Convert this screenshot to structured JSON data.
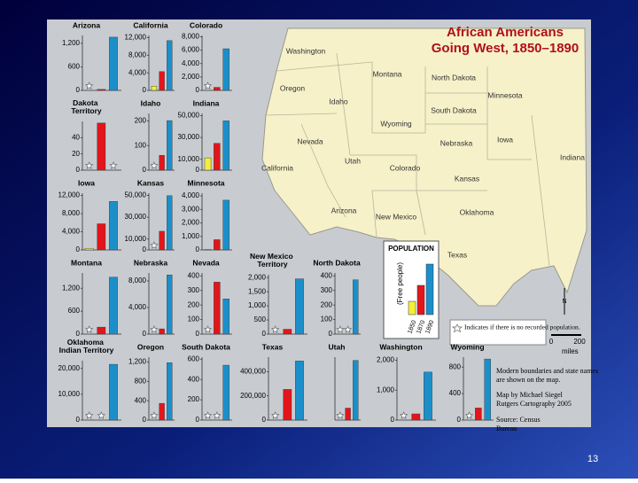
{
  "title": [
    "African Americans",
    "Going West, 1850–1890"
  ],
  "series_colors": [
    "#f4ee3a",
    "#e3151b",
    "#1b8fca"
  ],
  "legend": {
    "title": "POPULATION",
    "subtitle": "(Free people)",
    "years": [
      "1850",
      "1870",
      "1890"
    ]
  },
  "star_note": "Indicates if there is no recorded population.",
  "scale": {
    "start": "0",
    "end": "200",
    "unit": "miles"
  },
  "compass": "N",
  "notes": [
    "Modern boundaries and state names are shown on the map.",
    "Map by Michael Siegel Rutgers Cartography 2005",
    "Source: Census Bureau"
  ],
  "states": [
    "Washington",
    "Montana",
    "North Dakota",
    "Minnesota",
    "Oregon",
    "Idaho",
    "South Dakota",
    "Wyoming",
    "Iowa",
    "Nevada",
    "Nebraska",
    "Indiana",
    "Utah",
    "Colorado",
    "California",
    "Kansas",
    "Arizona",
    "New Mexico",
    "Oklahoma",
    "Texas"
  ],
  "charts": [
    {
      "type": "bar",
      "name": "Arizona",
      "ylim": [
        0,
        1400
      ],
      "yticks": [
        0,
        600,
        {
          "value": 1200,
          "label": "1,200"
        }
      ],
      "values": [
        null,
        26,
        1357
      ]
    },
    {
      "type": "bar",
      "name": "California",
      "ylim": [
        0,
        12500
      ],
      "yticks": [
        0,
        {
          "value": 4000,
          "label": "4,000"
        },
        {
          "value": 8000,
          "label": "8,000"
        },
        {
          "value": 12000,
          "label": "12,000"
        }
      ],
      "values": [
        962,
        4272,
        11322
      ]
    },
    {
      "type": "bar",
      "name": "Colorado",
      "ylim": [
        0,
        8200
      ],
      "yticks": [
        0,
        {
          "value": 2000,
          "label": "2,000"
        },
        {
          "value": 4000,
          "label": "4,000"
        },
        {
          "value": 6000,
          "label": "6,000"
        },
        {
          "value": 8000,
          "label": "8,000"
        }
      ],
      "values": [
        null,
        456,
        6215
      ]
    },
    {
      "type": "bar",
      "name": "Dakota Territory",
      "ylim": [
        0,
        60
      ],
      "yticks": [
        0,
        20,
        40
      ],
      "values": [
        null,
        58,
        null
      ]
    },
    {
      "type": "bar",
      "name": "Idaho",
      "ylim": [
        0,
        230
      ],
      "yticks": [
        0,
        100,
        200
      ],
      "values": [
        null,
        60,
        201
      ]
    },
    {
      "type": "bar",
      "name": "Indiana",
      "ylim": [
        0,
        52000
      ],
      "yticks": [
        0,
        {
          "value": 10000,
          "label": "10,000"
        },
        {
          "value": 30000,
          "label": "30,000"
        },
        {
          "value": 50000,
          "label": "50,000"
        }
      ],
      "values": [
        11262,
        24560,
        45215
      ]
    },
    {
      "type": "bar",
      "name": "Iowa",
      "ylim": [
        0,
        12500
      ],
      "yticks": [
        0,
        {
          "value": 4000,
          "label": "4,000"
        },
        {
          "value": 8000,
          "label": "8,000"
        },
        {
          "value": 12000,
          "label": "12,000"
        }
      ],
      "values": [
        333,
        5762,
        10685
      ]
    },
    {
      "type": "bar",
      "name": "Kansas",
      "ylim": [
        0,
        52000
      ],
      "yticks": [
        0,
        {
          "value": 10000,
          "label": "10,000"
        },
        {
          "value": 30000,
          "label": "30,000"
        },
        {
          "value": 50000,
          "label": "50,000"
        }
      ],
      "values": [
        null,
        17108,
        49710
      ]
    },
    {
      "type": "bar",
      "name": "Minnesota",
      "ylim": [
        0,
        4200
      ],
      "yticks": [
        0,
        {
          "value": 1000,
          "label": "1,000"
        },
        {
          "value": 2000,
          "label": "2,000"
        },
        {
          "value": 3000,
          "label": "3,000"
        },
        {
          "value": 4000,
          "label": "4,000"
        }
      ],
      "values": [
        39,
        759,
        3683
      ]
    },
    {
      "type": "bar",
      "name": "Montana",
      "ylim": [
        0,
        1600
      ],
      "yticks": [
        0,
        600,
        {
          "value": 1200,
          "label": "1,200"
        }
      ],
      "values": [
        null,
        183,
        1490
      ]
    },
    {
      "type": "bar",
      "name": "Nebraska",
      "ylim": [
        0,
        9200
      ],
      "yticks": [
        0,
        {
          "value": 4000,
          "label": "4,000"
        },
        {
          "value": 8000,
          "label": "8,000"
        }
      ],
      "values": [
        null,
        789,
        8913
      ]
    },
    {
      "type": "bar",
      "name": "Nevada",
      "ylim": [
        0,
        420
      ],
      "yticks": [
        0,
        100,
        200,
        300,
        400
      ],
      "values": [
        null,
        357,
        242
      ]
    },
    {
      "type": "bar",
      "name": "New Mexico Territory",
      "ylim": [
        0,
        2100
      ],
      "yticks": [
        0,
        500,
        {
          "value": 1000,
          "label": "1,000"
        },
        {
          "value": 1500,
          "label": "1,500"
        },
        {
          "value": 2000,
          "label": "2,000"
        }
      ],
      "values": [
        null,
        172,
        1956
      ]
    },
    {
      "type": "bar",
      "name": "North Dakota",
      "ylim": [
        0,
        420
      ],
      "yticks": [
        0,
        100,
        200,
        300,
        400
      ],
      "values": [
        null,
        null,
        373
      ]
    },
    {
      "type": "bar",
      "name": "Oklahoma Indian Territory",
      "ylim": [
        0,
        23000
      ],
      "yticks": [
        0,
        {
          "value": 10000,
          "label": "10,000"
        },
        {
          "value": 20000,
          "label": "20,000"
        }
      ],
      "values": [
        null,
        null,
        21609
      ]
    },
    {
      "type": "bar",
      "name": "Oregon",
      "ylim": [
        0,
        1300
      ],
      "yticks": [
        0,
        400,
        800,
        {
          "value": 1200,
          "label": "1,200"
        }
      ],
      "values": [
        null,
        346,
        1186
      ]
    },
    {
      "type": "bar",
      "name": "South Dakota",
      "ylim": [
        0,
        620
      ],
      "yticks": [
        0,
        200,
        400,
        600
      ],
      "values": [
        null,
        null,
        541
      ]
    },
    {
      "type": "bar",
      "name": "Texas",
      "ylim": [
        0,
        520000
      ],
      "yticks": [
        0,
        {
          "value": 200000,
          "label": "200,000"
        },
        {
          "value": 400000,
          "label": "400,000"
        }
      ],
      "values": [
        null,
        253475,
        488171
      ]
    },
    {
      "type": "bar",
      "name": "Utah",
      "ylim": [
        0,
        620
      ],
      "yticks": [],
      "values": [
        null,
        118,
        588
      ]
    },
    {
      "type": "bar",
      "name": "Washington",
      "ylim": [
        0,
        2100
      ],
      "yticks": [
        0,
        {
          "value": 1000,
          "label": "1,000"
        },
        {
          "value": 2000,
          "label": "2,000"
        }
      ],
      "values": [
        null,
        207,
        1602
      ]
    },
    {
      "type": "bar",
      "name": "Wyoming",
      "ylim": [
        0,
        950
      ],
      "yticks": [
        0,
        400,
        800
      ],
      "values": [
        null,
        183,
        922
      ]
    }
  ],
  "page_number": "13"
}
